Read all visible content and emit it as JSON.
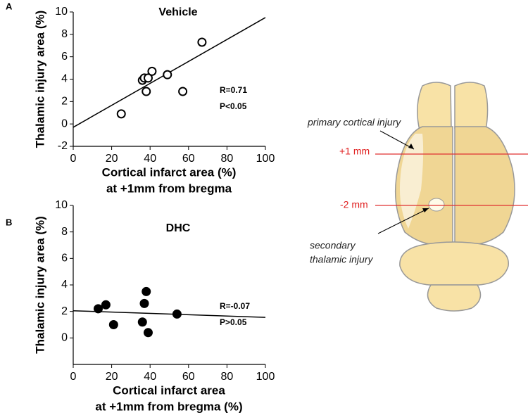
{
  "chart_data": [
    {
      "type": "scatter",
      "label": "A",
      "title": "Vehicle",
      "x_label": [
        "Cortical infarct area (%)",
        "at +1mm from bregma"
      ],
      "y_label": "Thalamic injury area (%)",
      "annotations": [
        "R=0.71",
        "P<0.05"
      ],
      "x": [
        25,
        36,
        37,
        38,
        39,
        41,
        49,
        57,
        67
      ],
      "values": [
        0.9,
        3.9,
        4.1,
        2.9,
        4.1,
        4.7,
        4.4,
        2.9,
        7.3
      ],
      "fit": {
        "x": [
          0,
          100
        ],
        "y": [
          -0.3,
          9.5
        ]
      },
      "marker": "open",
      "color": "#000000",
      "xlim": [
        0,
        100
      ],
      "xticks": [
        0,
        20,
        40,
        60,
        80,
        100
      ],
      "ylim": [
        -2,
        10
      ],
      "yticks": [
        -2,
        0,
        2,
        4,
        6,
        8,
        10
      ]
    },
    {
      "type": "scatter",
      "label": "B",
      "title": "DHC",
      "x_label": [
        "Cortical infarct area",
        "at +1mm from bregma (%)"
      ],
      "y_label": "Thalamic injury area (%)",
      "annotations": [
        "R=-0.07",
        "P>0.05"
      ],
      "x": [
        13,
        17,
        21,
        36,
        37,
        38,
        39,
        54
      ],
      "values": [
        2.2,
        2.5,
        1.0,
        1.2,
        2.6,
        3.5,
        0.4,
        1.8
      ],
      "fit": {
        "x": [
          0,
          100
        ],
        "y": [
          2.05,
          1.55
        ]
      },
      "marker": "filled",
      "color": "#000000",
      "xlim": [
        0,
        100
      ],
      "xticks": [
        0,
        20,
        40,
        60,
        80,
        100
      ],
      "ylim": [
        -2,
        10
      ],
      "yticks": [
        0,
        2,
        4,
        6,
        8,
        10
      ]
    }
  ],
  "diagram": {
    "labels": [
      "primary cortical injury",
      "+1 mm",
      "-2 mm",
      "secondary",
      "thalamic injury"
    ]
  }
}
